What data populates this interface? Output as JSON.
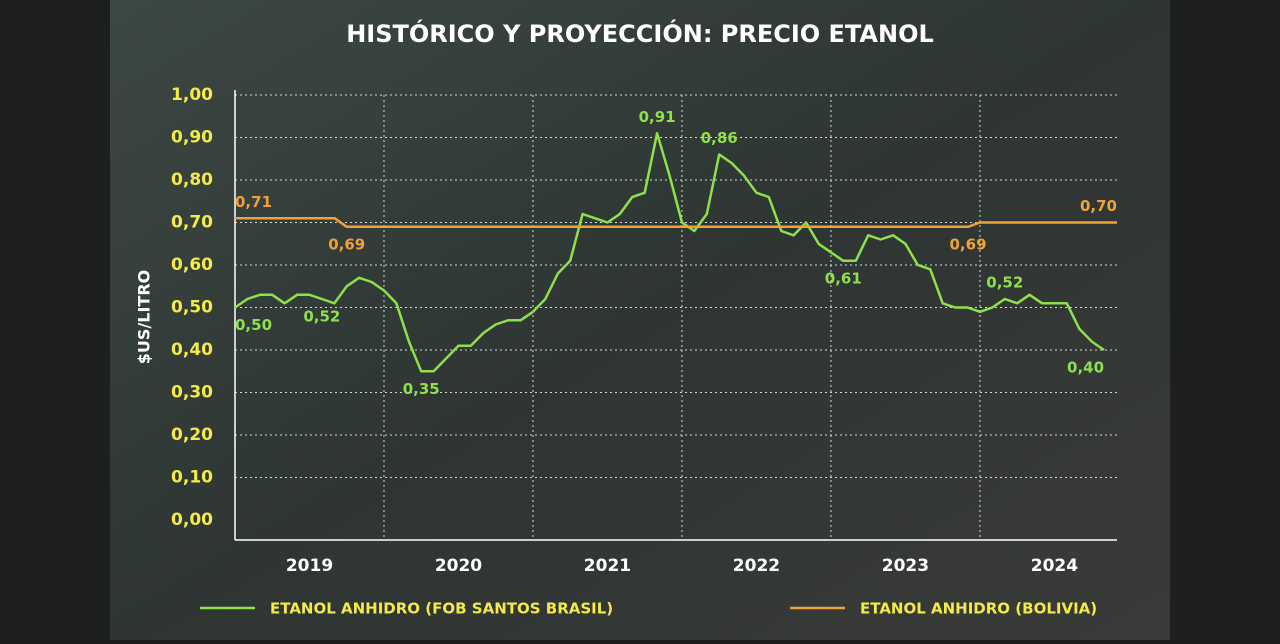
{
  "chart_data": {
    "type": "line",
    "title": "HISTÓRICO Y PROYECCIÓN: PRECIO ETANOL",
    "y_label": "$US/LITRO",
    "xlim": [
      2019,
      2024.92
    ],
    "ylim": [
      0,
      1
    ],
    "xticks": [
      {
        "value": 2019.5,
        "label": "2019"
      },
      {
        "value": 2020.5,
        "label": "2020"
      },
      {
        "value": 2021.5,
        "label": "2021"
      },
      {
        "value": 2022.5,
        "label": "2022"
      },
      {
        "value": 2023.5,
        "label": "2023"
      },
      {
        "value": 2024.5,
        "label": "2024"
      }
    ],
    "xgrid": [
      2020,
      2021,
      2022,
      2023,
      2024
    ],
    "yticks": [
      {
        "value": 0,
        "label": "0,00"
      },
      {
        "value": 0.1,
        "label": "0,10"
      },
      {
        "value": 0.2,
        "label": "0,20"
      },
      {
        "value": 0.3,
        "label": "0,30"
      },
      {
        "value": 0.4,
        "label": "0,40"
      },
      {
        "value": 0.5,
        "label": "0,50"
      },
      {
        "value": 0.6,
        "label": "0,60"
      },
      {
        "value": 0.7,
        "label": "0,70"
      },
      {
        "value": 0.8,
        "label": "0,80"
      },
      {
        "value": 0.9,
        "label": "0,90"
      },
      {
        "value": 1,
        "label": "1,00"
      }
    ],
    "grid": true,
    "legend": "bottom",
    "series": [
      {
        "name": "ETANOL ANHIDRO (FOB SANTOS BRASIL)",
        "color": "#8ee04c",
        "x": [
          2019,
          2019.083,
          2019.167,
          2019.25,
          2019.333,
          2019.417,
          2019.5,
          2019.583,
          2019.667,
          2019.75,
          2019.833,
          2019.917,
          2020,
          2020.083,
          2020.167,
          2020.25,
          2020.333,
          2020.417,
          2020.5,
          2020.583,
          2020.667,
          2020.75,
          2020.833,
          2020.917,
          2021,
          2021.083,
          2021.167,
          2021.25,
          2021.333,
          2021.417,
          2021.5,
          2021.583,
          2021.667,
          2021.75,
          2021.833,
          2021.917,
          2022,
          2022.083,
          2022.167,
          2022.25,
          2022.333,
          2022.417,
          2022.5,
          2022.583,
          2022.667,
          2022.75,
          2022.833,
          2022.917,
          2023,
          2023.083,
          2023.167,
          2023.25,
          2023.333,
          2023.417,
          2023.5,
          2023.583,
          2023.667,
          2023.75,
          2023.833,
          2023.917,
          2024,
          2024.083,
          2024.167,
          2024.25,
          2024.333,
          2024.417,
          2024.5,
          2024.583,
          2024.667,
          2024.75,
          2024.833
        ],
        "values": [
          0.5,
          0.52,
          0.53,
          0.53,
          0.51,
          0.53,
          0.53,
          0.52,
          0.51,
          0.55,
          0.57,
          0.56,
          0.54,
          0.51,
          0.42,
          0.35,
          0.35,
          0.38,
          0.41,
          0.41,
          0.44,
          0.46,
          0.47,
          0.47,
          0.49,
          0.52,
          0.58,
          0.61,
          0.72,
          0.71,
          0.7,
          0.72,
          0.76,
          0.77,
          0.91,
          0.81,
          0.7,
          0.68,
          0.72,
          0.86,
          0.84,
          0.81,
          0.77,
          0.76,
          0.68,
          0.67,
          0.7,
          0.65,
          0.63,
          0.61,
          0.61,
          0.67,
          0.66,
          0.67,
          0.65,
          0.6,
          0.59,
          0.51,
          0.5,
          0.5,
          0.49,
          0.5,
          0.52,
          0.51,
          0.53,
          0.51,
          0.51,
          0.51,
          0.45,
          0.42,
          0.4
        ],
        "value_labels": [
          "0,50",
          null,
          null,
          null,
          null,
          null,
          null,
          "0,52",
          null,
          null,
          null,
          null,
          null,
          null,
          null,
          "0,35",
          null,
          null,
          null,
          null,
          null,
          null,
          null,
          null,
          null,
          null,
          null,
          null,
          null,
          null,
          null,
          null,
          null,
          null,
          "0,91",
          null,
          null,
          null,
          null,
          "0,86",
          null,
          null,
          null,
          null,
          null,
          null,
          null,
          null,
          null,
          "0,61",
          null,
          null,
          null,
          null,
          null,
          null,
          null,
          null,
          null,
          null,
          null,
          null,
          "0,52",
          null,
          null,
          null,
          null,
          null,
          null,
          null,
          "0,40"
        ]
      },
      {
        "name": "ETANOL ANHIDRO (BOLIVIA)",
        "color": "#f0a23a",
        "x": [
          2019,
          2019.67,
          2019.75,
          2023.92,
          2024.0,
          2024.92
        ],
        "values": [
          0.71,
          0.71,
          0.69,
          0.69,
          0.7,
          0.7
        ],
        "value_labels": [
          "0,71",
          null,
          "0,69",
          "0,69",
          null,
          "0,70"
        ]
      }
    ]
  }
}
